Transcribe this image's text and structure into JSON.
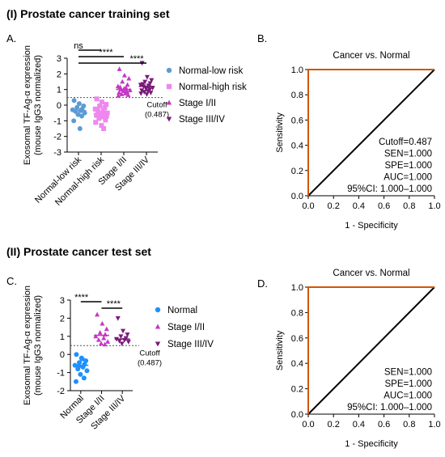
{
  "sections": [
    {
      "title": "(I) Prostate cancer training set"
    },
    {
      "title": "(II) Prostate cancer test set"
    }
  ],
  "chart_data": [
    {
      "panel": "A.",
      "type": "scatter",
      "ylabel_lines": [
        "Exosomal TF-Ag-α expression",
        "(mouse IgG3 normalized)"
      ],
      "ylim": [
        -3,
        3
      ],
      "yticks": [
        "-3",
        "-2",
        "-1",
        "0",
        "1",
        "2",
        "3"
      ],
      "categories": [
        "Normal-low risk",
        "Normal-high risk",
        "Stage I/II",
        "Stage III/IV"
      ],
      "cutoff": {
        "value": 0.487,
        "label_lines": [
          "Cutoff",
          "(0.487)"
        ]
      },
      "significance": [
        {
          "from": 0,
          "to": 1,
          "label": "ns"
        },
        {
          "from": 0,
          "to": 2,
          "label": "****"
        },
        {
          "from": 0,
          "to": 3,
          "label": "****"
        }
      ],
      "series": [
        {
          "name": "Normal-low risk",
          "color": "#5B9BD5",
          "marker": "circle",
          "median": -0.35,
          "values": [
            0.3,
            0.1,
            -0.05,
            -0.15,
            -0.25,
            -0.3,
            -0.35,
            -0.4,
            -0.5,
            -0.6,
            -0.7,
            -1.0,
            -1.5
          ]
        },
        {
          "name": "Normal-high risk",
          "color": "#EE88EE",
          "marker": "square",
          "median": -0.55,
          "values": [
            0.4,
            0.2,
            0.05,
            -0.05,
            -0.15,
            -0.25,
            -0.35,
            -0.45,
            -0.5,
            -0.55,
            -0.6,
            -0.65,
            -0.75,
            -0.85,
            -0.95,
            -1.1,
            -1.3,
            -1.5,
            -0.3,
            -0.7
          ]
        },
        {
          "name": "Stage I/II",
          "color": "#C438C4",
          "marker": "triangle-up",
          "median": 1.0,
          "values": [
            2.3,
            1.9,
            1.7,
            1.5,
            1.3,
            1.2,
            1.1,
            1.0,
            0.95,
            0.9,
            0.85,
            0.8,
            0.75,
            0.7,
            0.65,
            0.6,
            1.05,
            0.9,
            1.15
          ]
        },
        {
          "name": "Stage III/IV",
          "color": "#7A1A7A",
          "marker": "triangle-down",
          "median": 1.2,
          "values": [
            2.7,
            1.8,
            1.6,
            1.5,
            1.4,
            1.3,
            1.25,
            1.2,
            1.1,
            1.05,
            1.0,
            0.95,
            0.9,
            0.85,
            0.8,
            0.75,
            0.7,
            1.15,
            1.35
          ]
        }
      ]
    },
    {
      "panel": "B.",
      "type": "line",
      "title": "Cancer vs. Normal",
      "xlabel": "1 - Specificity",
      "ylabel": "Sensitivity",
      "xlim": [
        0,
        1
      ],
      "ylim": [
        0,
        1
      ],
      "ticks": [
        "0.0",
        "0.2",
        "0.4",
        "0.6",
        "0.8",
        "1.0"
      ],
      "roc": {
        "x": [
          0,
          0,
          1
        ],
        "y": [
          0,
          1,
          1
        ],
        "color": "#D35400"
      },
      "reference": {
        "x": [
          0,
          1
        ],
        "y": [
          0,
          1
        ],
        "color": "#000000"
      },
      "stats": [
        "Cutoff=0.487",
        "SEN=1.000",
        "SPE=1.000",
        "AUC=1.000",
        "95%CI: 1.000–1.000"
      ]
    },
    {
      "panel": "C.",
      "type": "scatter",
      "ylabel_lines": [
        "Exosomal TF-Ag-α expression",
        "(mouse IgG3 normalized)"
      ],
      "ylim": [
        -2,
        3
      ],
      "yticks": [
        "-2",
        "-1",
        "0",
        "1",
        "2",
        "3"
      ],
      "categories": [
        "Normal",
        "Stage I/II",
        "Stage III/IV"
      ],
      "cutoff": {
        "value": 0.487,
        "label_lines": [
          "Cutoff",
          "(0.487)"
        ]
      },
      "significance": [
        {
          "from": 0,
          "to": 1,
          "label": "****"
        },
        {
          "from": 1,
          "to": 2,
          "label": "****"
        }
      ],
      "series": [
        {
          "name": "Normal",
          "color": "#1E90FF",
          "marker": "circle",
          "median": -0.6,
          "values": [
            0.0,
            -0.2,
            -0.35,
            -0.45,
            -0.55,
            -0.6,
            -0.7,
            -0.8,
            -0.9,
            -1.1,
            -1.3,
            -1.5,
            -0.25,
            -0.65
          ]
        },
        {
          "name": "Stage I/II",
          "color": "#C438C4",
          "marker": "triangle-up",
          "median": 1.05,
          "values": [
            2.2,
            1.7,
            1.4,
            1.2,
            1.1,
            1.0,
            0.9,
            0.8,
            0.7,
            0.6,
            0.55
          ]
        },
        {
          "name": "Stage III/IV",
          "color": "#7A1A7A",
          "marker": "triangle-down",
          "median": 0.85,
          "values": [
            2.0,
            1.3,
            1.1,
            1.0,
            0.9,
            0.85,
            0.8,
            0.75,
            0.7,
            0.6
          ]
        }
      ]
    },
    {
      "panel": "D.",
      "type": "line",
      "title": "Cancer vs. Normal",
      "xlabel": "1 - Specificity",
      "ylabel": "Sensitivity",
      "xlim": [
        0,
        1
      ],
      "ylim": [
        0,
        1
      ],
      "ticks": [
        "0.0",
        "0.2",
        "0.4",
        "0.6",
        "0.8",
        "1.0"
      ],
      "roc": {
        "x": [
          0,
          0,
          1
        ],
        "y": [
          0,
          1,
          1
        ],
        "color": "#D35400"
      },
      "reference": {
        "x": [
          0,
          1
        ],
        "y": [
          0,
          1
        ],
        "color": "#000000"
      },
      "stats": [
        "SEN=1.000",
        "SPE=1.000",
        "AUC=1.000",
        "95%CI: 1.000–1.000"
      ]
    }
  ]
}
